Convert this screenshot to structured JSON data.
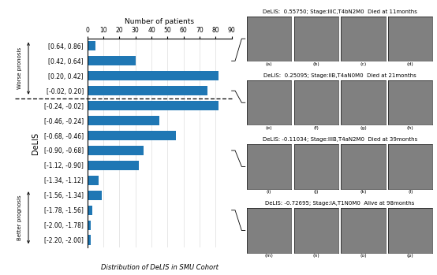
{
  "chart_data": {
    "type": "bar",
    "orientation": "horizontal",
    "categories": [
      "[0.64, 0.86]",
      "[0.42, 0.64]",
      "[0.20, 0.42]",
      "[-0.02, 0.20]",
      "[-0.24, -0.02]",
      "[-0.46, -0.24]",
      "[-0.68, -0.46]",
      "[-0.90, -0.68]",
      "[-1.12, -0.90]",
      "[-1.34, -1.12]",
      "[-1.56, -1.34]",
      "[-1.78, -1.56]",
      "[-2.00, -1.78]",
      "[-2.20, -2.00]"
    ],
    "values": [
      5,
      30,
      82,
      75,
      82,
      45,
      55,
      35,
      32,
      7,
      9,
      3,
      2,
      2
    ],
    "xlabel": "Number of patients",
    "ylabel": "DeLIS",
    "xlim": [
      0,
      90
    ],
    "xticks": [
      0,
      10,
      20,
      30,
      40,
      50,
      60,
      70,
      80,
      90
    ],
    "grid": true,
    "annotations": [
      {
        "text": "Worse pronosis",
        "span": [
          "[0.64, 0.86]",
          "[-0.02, 0.20]"
        ]
      },
      {
        "text": "Better prognosis",
        "span": [
          "[-1.56, -1.34]",
          "[-2.20, -2.00]"
        ]
      },
      {
        "text": "DeLIS:  0.55750; Stage:IIIC,T4bN2M0  Died at 11months",
        "category": "[0.42, 0.64]",
        "panels": [
          "(a)",
          "(b)",
          "(c)",
          "(d)"
        ]
      },
      {
        "text": "DeLIS:  0.25095; Stage:IIB,T4aN0M0  Died at 21months",
        "category": "[-0.02, 0.20]",
        "panels": [
          "(e)",
          "(f)",
          "(g)",
          "(h)"
        ]
      },
      {
        "text": "DeLIS: -0.11034; Stage:IIIB,T4aN2M0  Died at 39months",
        "category": "[-0.90, -0.68]",
        "panels": [
          "(i)",
          "(j)",
          "(k)",
          "(l)"
        ]
      },
      {
        "text": "DeLIS: -0.72695; Stage:IA,T1N0M0  Alive at 98months",
        "category": "[-1.78, -1.56]",
        "panels": [
          "(m)",
          "(n)",
          "(o)",
          "(p)"
        ]
      },
      {
        "text": "Distribution of DeLIS in SMU Cohort"
      }
    ]
  }
}
